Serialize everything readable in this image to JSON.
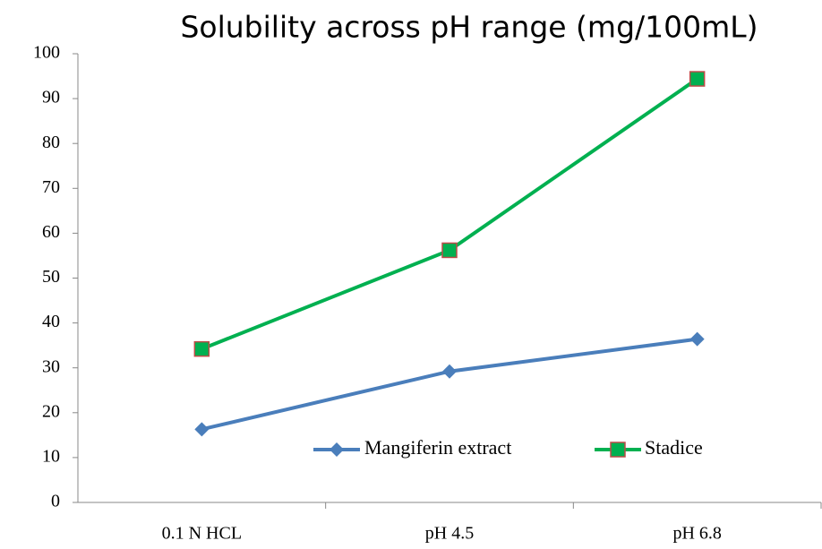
{
  "chart_data": {
    "type": "line",
    "title": "Solubility across pH range (mg/100mL)",
    "categories": [
      "0.1 N HCL",
      "pH 4.5",
      "pH 6.8"
    ],
    "series": [
      {
        "name": "Mangiferin extract",
        "color": "#4a7ebb",
        "marker": "diamond",
        "values": [
          16.3,
          29.2,
          36.4
        ]
      },
      {
        "name": "Stadice",
        "color": "#00b050",
        "marker": "square",
        "marker_edge": "#be4b48",
        "values": [
          34.2,
          56.2,
          94.4
        ]
      }
    ],
    "ylim": [
      0,
      100
    ],
    "yticks": [
      0,
      10,
      20,
      30,
      40,
      50,
      60,
      70,
      80,
      90,
      100
    ],
    "grid": false,
    "legend": "bottom"
  }
}
